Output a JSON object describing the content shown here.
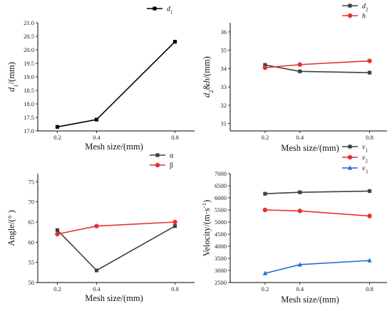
{
  "chart_data": [
    {
      "type": "line",
      "x": [
        0.2,
        0.4,
        0.8
      ],
      "xlabel": "Mesh size/(mm)",
      "ylabel_main": "d",
      "ylabel_sub": "1",
      "ylabel_unit": "/(mm)",
      "ylim": [
        17.0,
        21.0
      ],
      "yticks": [
        "17.0",
        "17.5",
        "18.0",
        "18.5",
        "19.0",
        "19.5",
        "20.0",
        "20.5",
        "21.0"
      ],
      "xticks": [
        "0.2",
        "0.4",
        "0.8"
      ],
      "series": [
        {
          "name": "d",
          "sub": "1",
          "color": "#000000",
          "marker": "square",
          "values": [
            17.15,
            17.42,
            20.3
          ]
        }
      ]
    },
    {
      "type": "line",
      "x": [
        0.2,
        0.4,
        0.8
      ],
      "xlabel": "Mesh size/(mm)",
      "ylabel_main": "d",
      "ylabel_sub": "2",
      "ylabel_rest": "&h",
      "ylabel_unit": "/(mm)",
      "ylim": [
        30.6,
        36.5
      ],
      "yticks": [
        "31",
        "32",
        "33",
        "34",
        "35",
        "36"
      ],
      "xticks": [
        "0.2",
        "0.4",
        "0.8"
      ],
      "series": [
        {
          "name": "d",
          "sub": "2",
          "color": "#404040",
          "marker": "square",
          "values": [
            34.2,
            33.85,
            33.78
          ]
        },
        {
          "name": "h",
          "sub": "",
          "color": "#e8302f",
          "marker": "circle",
          "values": [
            34.05,
            34.22,
            34.42
          ]
        }
      ]
    },
    {
      "type": "line",
      "x": [
        0.2,
        0.4,
        0.8
      ],
      "xlabel": "Mesh size/(mm)",
      "ylabel": "Angle/(° )",
      "ylim": [
        50,
        77
      ],
      "yticks": [
        "50",
        "55",
        "60",
        "65",
        "70",
        "75"
      ],
      "xticks": [
        "0.2",
        "0.4",
        "0.8"
      ],
      "series": [
        {
          "name": "α",
          "sub": "",
          "color": "#404040",
          "marker": "square",
          "values": [
            63,
            53,
            64
          ]
        },
        {
          "name": "β",
          "sub": "",
          "color": "#e8302f",
          "marker": "circle",
          "values": [
            62,
            64,
            65
          ]
        }
      ]
    },
    {
      "type": "line",
      "x": [
        0.2,
        0.4,
        0.8
      ],
      "xlabel": "Mesh size/(mm)",
      "ylabel": "Velocity/(m·s",
      "ylabel_sup": "-1",
      "ylabel_close": ")",
      "ylim": [
        2500,
        7000
      ],
      "yticks": [
        "2500",
        "3000",
        "3500",
        "4000",
        "4500",
        "5000",
        "5500",
        "6000",
        "6500",
        "7000"
      ],
      "xticks": [
        "0.2",
        "0.4",
        "0.8"
      ],
      "series": [
        {
          "name": "v",
          "sub": "1",
          "color": "#404040",
          "marker": "square",
          "values": [
            6170,
            6230,
            6280
          ]
        },
        {
          "name": "v",
          "sub": "2",
          "color": "#e8302f",
          "marker": "circle",
          "values": [
            5500,
            5460,
            5250
          ]
        },
        {
          "name": "v",
          "sub": "3",
          "color": "#1f6fd1",
          "marker": "triangle",
          "values": [
            2880,
            3240,
            3410
          ]
        }
      ]
    }
  ]
}
